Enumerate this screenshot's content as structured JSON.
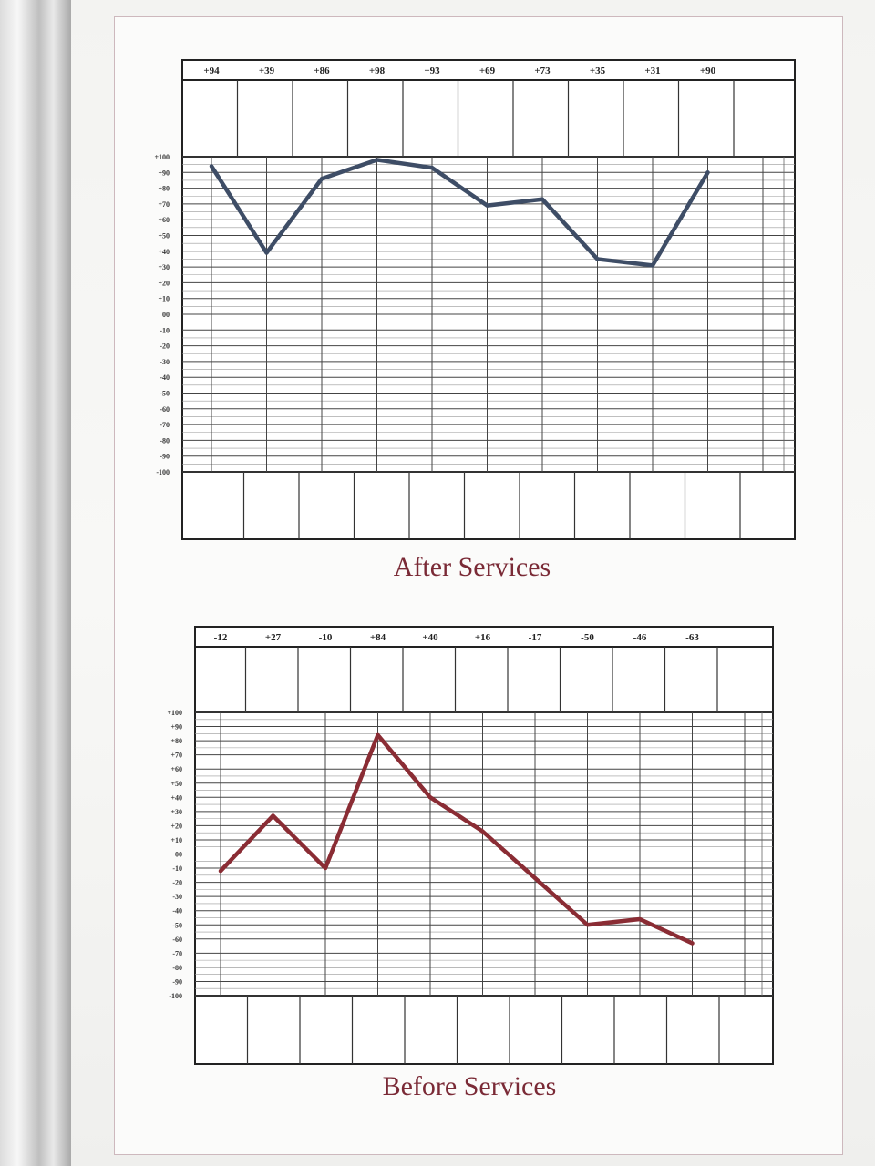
{
  "chart_data": [
    {
      "type": "line",
      "title": "After Services",
      "categories": [
        "+94",
        "+39",
        "+86",
        "+98",
        "+93",
        "+69",
        "+73",
        "+35",
        "+31",
        "+90"
      ],
      "series": [
        {
          "values": [
            94,
            39,
            86,
            98,
            93,
            69,
            73,
            35,
            31,
            90
          ]
        }
      ],
      "ylim": [
        -100,
        100
      ],
      "y_tick_labels": [
        "+100",
        "+90",
        "+80",
        "+70",
        "+60",
        "+50",
        "+40",
        "+30",
        "+20",
        "+10",
        "00",
        "-10",
        "-20",
        "-30",
        "-40",
        "-50",
        "-60",
        "-70",
        "-80",
        "-90",
        "-100"
      ],
      "line_color": "#3e4d66",
      "grid": true
    },
    {
      "type": "line",
      "title": "Before Services",
      "categories": [
        "-12",
        "+27",
        "-10",
        "+84",
        "+40",
        "+16",
        "-17",
        "-50",
        "-46",
        "-63"
      ],
      "series": [
        {
          "values": [
            -12,
            27,
            -10,
            84,
            40,
            16,
            -17,
            -50,
            -46,
            -63
          ]
        }
      ],
      "ylim": [
        -100,
        100
      ],
      "y_tick_labels": [
        "+100",
        "+90",
        "+80",
        "+70",
        "+60",
        "+50",
        "+40",
        "+30",
        "+20",
        "+10",
        "00",
        "-10",
        "-20",
        "-30",
        "-40",
        "-50",
        "-60",
        "-70",
        "-80",
        "-90",
        "-100"
      ],
      "line_color": "#8a2c34",
      "grid": true
    }
  ]
}
